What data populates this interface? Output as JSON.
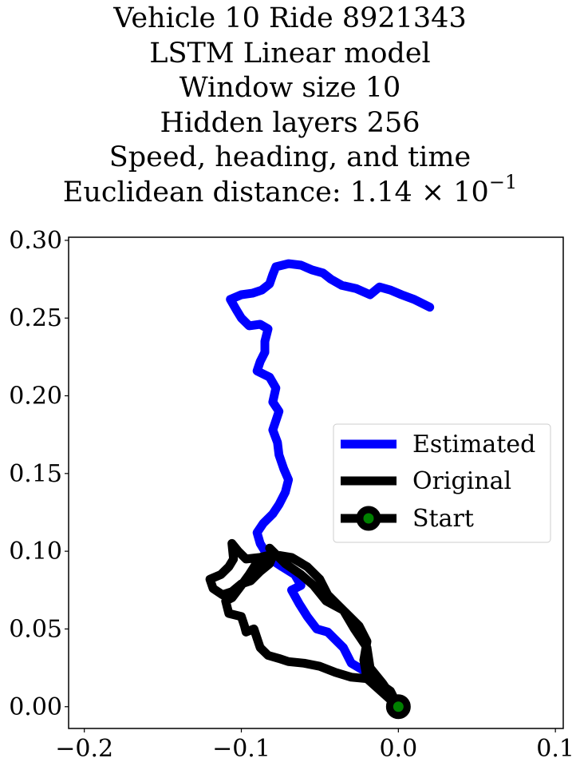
{
  "title_lines": {
    "line1": "Vehicle 10 Ride 8921343",
    "line2": "LSTM Linear model",
    "line3": "Window size 10",
    "line4": "Hidden layers 256",
    "line5": "Speed, heading, and time",
    "line6_prefix": "Euclidean distance: 1.14 × 10",
    "line6_exponent": "−1"
  },
  "chart_data": {
    "type": "line",
    "title": "Vehicle 10 Ride 8921343 / LSTM Linear model / Window size 10 / Hidden layers 256 / Speed, heading, and time / Euclidean distance: 1.14 × 10^−1",
    "xlabel": "",
    "ylabel": "",
    "xlim": [
      -0.21,
      0.105
    ],
    "ylim": [
      -0.014,
      0.302
    ],
    "grid": false,
    "legend_position": "center-right",
    "x_ticks": [
      {
        "value": -0.2,
        "label": "−0.2"
      },
      {
        "value": -0.1,
        "label": "−0.1"
      },
      {
        "value": 0.0,
        "label": "0.0"
      },
      {
        "value": 0.1,
        "label": "0.1"
      }
    ],
    "y_ticks": [
      {
        "value": 0.0,
        "label": "0.00"
      },
      {
        "value": 0.05,
        "label": "0.05"
      },
      {
        "value": 0.1,
        "label": "0.10"
      },
      {
        "value": 0.15,
        "label": "0.15"
      },
      {
        "value": 0.2,
        "label": "0.20"
      },
      {
        "value": 0.25,
        "label": "0.25"
      },
      {
        "value": 0.3,
        "label": "0.30"
      }
    ],
    "series": [
      {
        "name": "Estimated",
        "color": "#0000ff",
        "points": [
          [
            0.0,
            0.0
          ],
          [
            -0.01,
            0.013
          ],
          [
            -0.02,
            0.022
          ],
          [
            -0.03,
            0.028
          ],
          [
            -0.035,
            0.038
          ],
          [
            -0.045,
            0.048
          ],
          [
            -0.052,
            0.05
          ],
          [
            -0.058,
            0.058
          ],
          [
            -0.063,
            0.066
          ],
          [
            -0.068,
            0.075
          ],
          [
            -0.062,
            0.078
          ],
          [
            -0.066,
            0.085
          ],
          [
            -0.074,
            0.09
          ],
          [
            -0.08,
            0.094
          ],
          [
            -0.085,
            0.1
          ],
          [
            -0.088,
            0.105
          ],
          [
            -0.09,
            0.112
          ],
          [
            -0.086,
            0.118
          ],
          [
            -0.08,
            0.124
          ],
          [
            -0.076,
            0.13
          ],
          [
            -0.072,
            0.138
          ],
          [
            -0.07,
            0.146
          ],
          [
            -0.073,
            0.153
          ],
          [
            -0.076,
            0.162
          ],
          [
            -0.077,
            0.17
          ],
          [
            -0.08,
            0.178
          ],
          [
            -0.078,
            0.184
          ],
          [
            -0.076,
            0.19
          ],
          [
            -0.08,
            0.196
          ],
          [
            -0.078,
            0.205
          ],
          [
            -0.082,
            0.212
          ],
          [
            -0.09,
            0.216
          ],
          [
            -0.088,
            0.222
          ],
          [
            -0.085,
            0.228
          ],
          [
            -0.085,
            0.235
          ],
          [
            -0.083,
            0.243
          ],
          [
            -0.088,
            0.246
          ],
          [
            -0.095,
            0.245
          ],
          [
            -0.1,
            0.25
          ],
          [
            -0.103,
            0.255
          ],
          [
            -0.107,
            0.262
          ],
          [
            -0.1,
            0.265
          ],
          [
            -0.093,
            0.266
          ],
          [
            -0.087,
            0.268
          ],
          [
            -0.082,
            0.272
          ],
          [
            -0.08,
            0.278
          ],
          [
            -0.078,
            0.283
          ],
          [
            -0.07,
            0.285
          ],
          [
            -0.062,
            0.284
          ],
          [
            -0.055,
            0.281
          ],
          [
            -0.048,
            0.279
          ],
          [
            -0.043,
            0.275
          ],
          [
            -0.036,
            0.271
          ],
          [
            -0.027,
            0.269
          ],
          [
            -0.018,
            0.265
          ],
          [
            -0.012,
            0.27
          ],
          [
            -0.005,
            0.268
          ],
          [
            0.002,
            0.265
          ],
          [
            0.01,
            0.262
          ],
          [
            0.02,
            0.257
          ]
        ]
      },
      {
        "name": "Original",
        "color": "#000000",
        "points": [
          [
            0.0,
            0.0
          ],
          [
            -0.01,
            0.015
          ],
          [
            -0.018,
            0.025
          ],
          [
            -0.02,
            0.038
          ],
          [
            -0.028,
            0.05
          ],
          [
            -0.035,
            0.062
          ],
          [
            -0.045,
            0.072
          ],
          [
            -0.05,
            0.082
          ],
          [
            -0.058,
            0.09
          ],
          [
            -0.068,
            0.096
          ],
          [
            -0.08,
            0.098
          ],
          [
            -0.088,
            0.096
          ],
          [
            -0.097,
            0.095
          ],
          [
            -0.102,
            0.1
          ],
          [
            -0.106,
            0.105
          ],
          [
            -0.105,
            0.095
          ],
          [
            -0.108,
            0.09
          ],
          [
            -0.113,
            0.085
          ],
          [
            -0.12,
            0.082
          ],
          [
            -0.118,
            0.076
          ],
          [
            -0.112,
            0.072
          ],
          [
            -0.106,
            0.074
          ],
          [
            -0.1,
            0.079
          ],
          [
            -0.094,
            0.081
          ],
          [
            -0.088,
            0.087
          ],
          [
            -0.082,
            0.092
          ],
          [
            -0.08,
            0.097
          ],
          [
            -0.09,
            0.093
          ],
          [
            -0.095,
            0.085
          ],
          [
            -0.1,
            0.078
          ],
          [
            -0.106,
            0.07
          ],
          [
            -0.11,
            0.068
          ],
          [
            -0.108,
            0.06
          ],
          [
            -0.1,
            0.058
          ],
          [
            -0.098,
            0.052
          ],
          [
            -0.097,
            0.048
          ],
          [
            -0.092,
            0.05
          ],
          [
            -0.09,
            0.044
          ],
          [
            -0.088,
            0.038
          ],
          [
            -0.083,
            0.033
          ],
          [
            -0.076,
            0.031
          ],
          [
            -0.07,
            0.029
          ],
          [
            -0.06,
            0.028
          ],
          [
            -0.05,
            0.026
          ],
          [
            -0.04,
            0.022
          ],
          [
            -0.03,
            0.019
          ],
          [
            -0.02,
            0.018
          ],
          [
            -0.012,
            0.015
          ],
          [
            -0.005,
            0.01
          ],
          [
            0.0,
            0.0
          ],
          [
            -0.02,
            0.018
          ],
          [
            -0.022,
            0.03
          ],
          [
            -0.02,
            0.042
          ],
          [
            -0.025,
            0.052
          ],
          [
            -0.035,
            0.062
          ],
          [
            -0.046,
            0.068
          ],
          [
            -0.054,
            0.078
          ],
          [
            -0.062,
            0.085
          ],
          [
            -0.072,
            0.092
          ],
          [
            -0.082,
            0.102
          ]
        ]
      }
    ],
    "start_marker": {
      "name": "Start",
      "x": 0.0,
      "y": 0.0,
      "edge_color": "#000000",
      "face_color": "#008000"
    },
    "legend_entries": [
      "Estimated",
      "Original",
      "Start"
    ]
  }
}
